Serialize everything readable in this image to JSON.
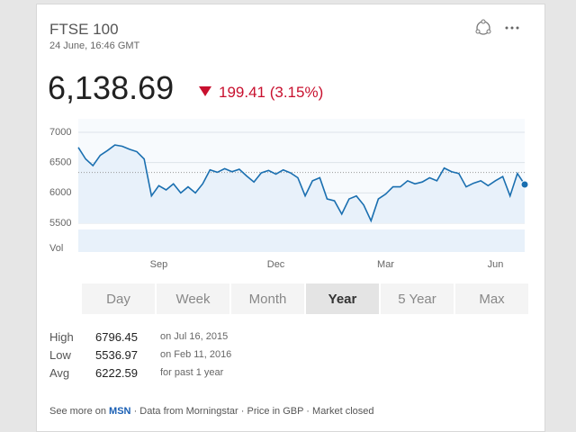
{
  "header": {
    "title": "FTSE 100",
    "timestamp": "24 June, 16:46 GMT",
    "price": "6,138.69",
    "change": "199.41 (3.15%)"
  },
  "chart_data": {
    "type": "line",
    "color": "#1a6fb0",
    "area_color": "#e8f1fa",
    "categories": [
      null,
      null,
      null,
      null,
      null,
      null,
      null,
      null,
      null,
      null,
      null,
      "Sep",
      null,
      null,
      null,
      null,
      null,
      null,
      null,
      null,
      null,
      null,
      null,
      null,
      null,
      null,
      null,
      "Dec",
      null,
      null,
      null,
      null,
      null,
      null,
      null,
      null,
      null,
      null,
      null,
      null,
      null,
      null,
      "Mar",
      null,
      null,
      null,
      null,
      null,
      null,
      null,
      null,
      null,
      null,
      null,
      null,
      null,
      null,
      "Jun",
      null,
      null,
      null,
      null
    ],
    "values": [
      6750,
      6560,
      6450,
      6620,
      6700,
      6790,
      6770,
      6720,
      6680,
      6560,
      5950,
      6120,
      6050,
      6150,
      6000,
      6100,
      6000,
      6150,
      6380,
      6340,
      6400,
      6350,
      6390,
      6280,
      6180,
      6330,
      6370,
      6310,
      6380,
      6330,
      6250,
      5950,
      6200,
      6250,
      5900,
      5870,
      5650,
      5900,
      5950,
      5800,
      5540,
      5900,
      5980,
      6100,
      6100,
      6200,
      6150,
      6180,
      6250,
      6200,
      6410,
      6350,
      6320,
      6100,
      6160,
      6200,
      6120,
      6200,
      6270,
      5950,
      6320,
      6138.69
    ],
    "ylim": [
      5500,
      7000
    ],
    "yticks": [
      5500,
      6000,
      6500,
      7000
    ],
    "grid": true,
    "reference_line": 6338.1,
    "volume_label": "Vol"
  },
  "tabs": [
    "Day",
    "Week",
    "Month",
    "Year",
    "5 Year",
    "Max"
  ],
  "selected_tab": 3,
  "stats": [
    {
      "label": "High",
      "value": 6796.45,
      "note": "on Jul 16, 2015"
    },
    {
      "label": "Low",
      "value": 5536.97,
      "note": "on Feb 11, 2016"
    },
    {
      "label": "Avg",
      "value": 6222.59,
      "note": "for past 1 year"
    }
  ],
  "footer": {
    "prefix": "See more on",
    "link": "MSN",
    "rest": "· Data from Morningstar · Price in GBP · Market closed"
  }
}
